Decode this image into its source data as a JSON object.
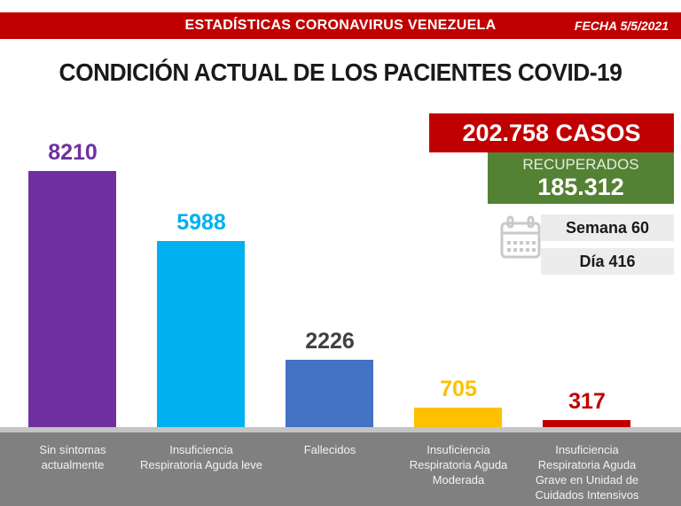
{
  "banner": {
    "title": "ESTADÍSTICAS CORONAVIRUS VENEZUELA",
    "date": "FECHA 5/5/2021"
  },
  "page_title": "CONDICIÓN ACTUAL DE LOS PACIENTES COVID-19",
  "summary": {
    "cases_total": "202.758 CASOS",
    "recovered_label": "RECUPERADOS",
    "recovered_value": "185.312",
    "week_label": "Semana 60",
    "day_label": "Día 416"
  },
  "colors": {
    "banner_red": "#c00000",
    "cases_red": "#c00000",
    "recovered_green": "#548235",
    "panel_gray": "#ececec",
    "footer_gray": "#808080",
    "axis_line_gray": "#c4c4c4",
    "calendar_icon_gray": "#c9c9c9"
  },
  "chart_data": {
    "type": "bar",
    "title": "CONDICIÓN ACTUAL DE LOS PACIENTES COVID-19",
    "categories": [
      "Sin síntomas actualmente",
      "Insuficiencia Respiratoria Aguda leve",
      "Fallecidos",
      "Insuficiencia Respiratoria Aguda Moderada",
      "Insuficiencia Respiratoria Aguda Grave en Unidad de Cuidados Intensivos"
    ],
    "category_display_lines": [
      [
        "Sin síntomas",
        "actualmente"
      ],
      [
        "Insuficiencia",
        "Respiratoria Aguda leve"
      ],
      [
        "Fallecidos"
      ],
      [
        "Insuficiencia",
        "Respiratoria Aguda",
        "Moderada"
      ],
      [
        "Insuficiencia",
        "Respiratoria Aguda",
        "Grave en Unidad de",
        "Cuidados Intensivos"
      ]
    ],
    "values": [
      8210,
      5988,
      2226,
      705,
      317
    ],
    "bar_colors": [
      "#7030a0",
      "#00b0f0",
      "#4472c4",
      "#ffc000",
      "#c00000"
    ],
    "value_label_colors": [
      "#7030a0",
      "#00b0f0",
      "#404040",
      "#ffc000",
      "#c00000"
    ],
    "ylim": [
      0,
      8210
    ],
    "grid": false,
    "legend": false,
    "data_labels": "above bars"
  }
}
